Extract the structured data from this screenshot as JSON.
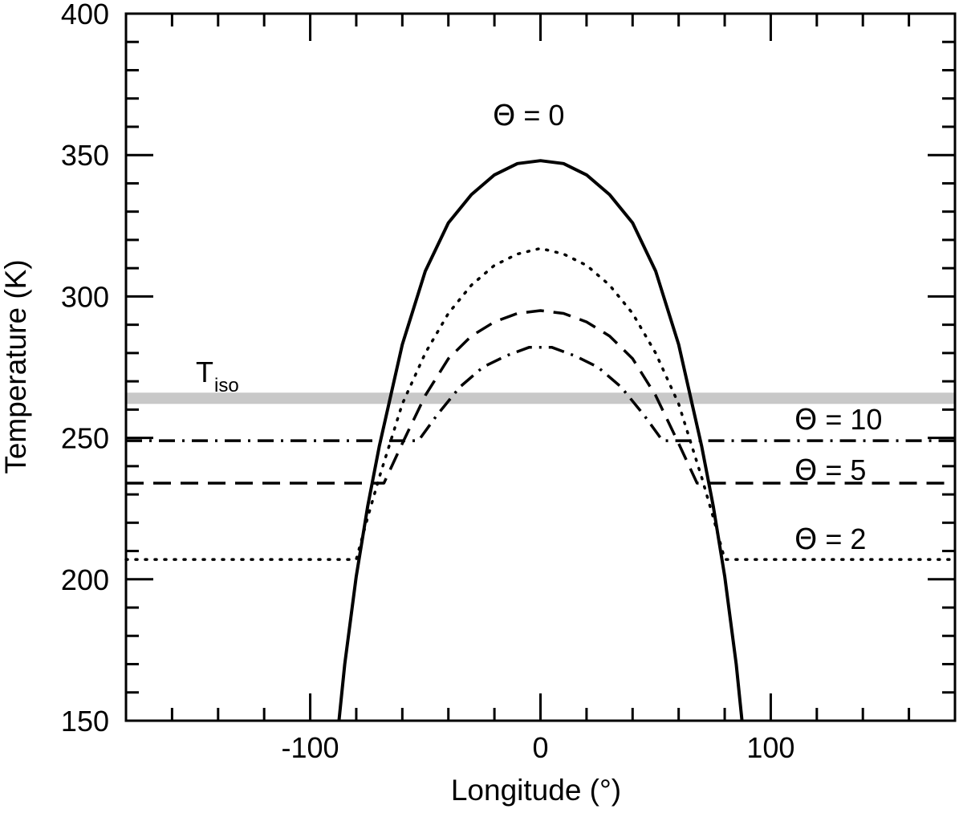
{
  "chart_data": {
    "type": "line",
    "title": "",
    "xlabel": "Longitude (°)",
    "ylabel": "Temperature (K)",
    "xlim": [
      -180,
      180
    ],
    "ylim": [
      150,
      400
    ],
    "x_ticks": [
      -100,
      0,
      100
    ],
    "y_ticks": [
      150,
      200,
      250,
      300,
      350,
      400
    ],
    "grid": false,
    "legend": "none",
    "x_tick_labels": [
      "-100",
      "0",
      "100"
    ],
    "y_tick_labels": [
      "150",
      "200",
      "250",
      "300",
      "350",
      "400"
    ],
    "annotations": {
      "theta0": {
        "symbol": "Θ",
        "text": " = 0"
      },
      "theta10": {
        "symbol": "Θ",
        "text": " = 10"
      },
      "theta5": {
        "symbol": "Θ",
        "text": " = 5"
      },
      "theta2": {
        "symbol": "Θ",
        "text": " = 2"
      },
      "tiso": {
        "main": "T",
        "sub": "iso"
      }
    },
    "reference_line": {
      "label": "T_iso",
      "y": 264,
      "color": "#c8c8c8"
    },
    "series": [
      {
        "key": "theta0",
        "style": "solid",
        "color": "#000000",
        "x": [
          -87.5,
          -85,
          -80,
          -75,
          -70,
          -60,
          -50,
          -40,
          -30,
          -20,
          -10,
          0,
          10,
          20,
          30,
          40,
          50,
          60,
          70,
          75,
          80,
          85,
          87.5
        ],
        "y": [
          150,
          170,
          201,
          226,
          247,
          283,
          309,
          326,
          336,
          343,
          347,
          348,
          347,
          343,
          336,
          326,
          309,
          283,
          247,
          226,
          201,
          170,
          150
        ]
      },
      {
        "key": "theta2",
        "style": "dotted",
        "color": "#000000",
        "x": [
          -180,
          -80,
          -75,
          -70,
          -60,
          -50,
          -40,
          -30,
          -20,
          -10,
          0,
          10,
          20,
          30,
          40,
          50,
          60,
          70,
          75,
          80,
          180
        ],
        "y": [
          207,
          207,
          222,
          236,
          262,
          280,
          294,
          304,
          311,
          315,
          317,
          315,
          311,
          304,
          294,
          280,
          262,
          236,
          222,
          207,
          207
        ]
      },
      {
        "key": "theta5",
        "style": "dashed",
        "color": "#000000",
        "x": [
          -180,
          -68,
          -60,
          -50,
          -40,
          -30,
          -20,
          -10,
          0,
          10,
          20,
          30,
          40,
          50,
          60,
          68,
          180
        ],
        "y": [
          234,
          234,
          248,
          265,
          278,
          286,
          291,
          294,
          295,
          294,
          291,
          286,
          278,
          265,
          248,
          234,
          234
        ]
      },
      {
        "key": "theta10",
        "style": "dashdot",
        "color": "#000000",
        "x": [
          -180,
          -53,
          -45,
          -35,
          -25,
          -15,
          -5,
          0,
          5,
          15,
          25,
          35,
          45,
          53,
          180
        ],
        "y": [
          249,
          249,
          258,
          268,
          275,
          279,
          282,
          282,
          282,
          279,
          275,
          268,
          258,
          249,
          249
        ]
      }
    ]
  }
}
